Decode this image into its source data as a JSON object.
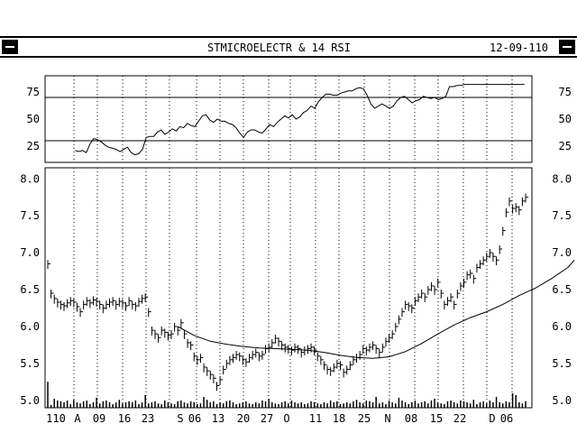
{
  "window": {
    "title": "STMICROELECTR & 14 RSI",
    "date": "12-09-110",
    "system_menu_icon": "system-menu-icon",
    "scroll_icon": "scroll-up-icon"
  },
  "chart_data": [
    {
      "type": "line",
      "name": "RSI panel",
      "title": "",
      "ylim": [
        10,
        90
      ],
      "yticks": [
        75,
        50,
        25
      ],
      "reference_lines": [
        70,
        30
      ],
      "grid": true,
      "x": [
        8,
        9,
        10,
        11,
        12,
        13,
        14,
        15,
        16,
        17,
        18,
        19,
        20,
        21,
        22,
        23,
        24,
        25,
        26,
        27,
        28,
        29,
        30,
        31,
        32,
        33,
        34,
        35,
        36,
        37,
        38,
        39,
        40,
        41,
        42,
        43,
        44,
        45,
        46,
        47,
        48,
        49,
        50,
        51,
        52,
        53,
        54,
        55,
        56,
        57,
        58,
        59,
        60,
        61,
        62,
        63,
        64,
        65,
        66,
        67,
        68,
        69,
        70,
        71,
        72,
        73,
        74,
        75,
        76,
        77,
        78,
        79,
        80,
        81,
        82,
        83,
        84,
        85,
        86,
        87,
        88,
        89,
        90,
        91,
        92,
        93,
        94,
        95,
        96,
        97,
        98,
        99,
        100,
        101,
        102,
        103,
        104,
        105,
        106,
        107,
        108,
        109,
        110,
        111,
        112,
        113,
        114,
        115,
        116,
        117,
        118,
        119,
        120,
        121,
        122,
        123,
        124,
        125,
        126,
        127,
        128
      ],
      "values": [
        21,
        20,
        21,
        19,
        27,
        32,
        31,
        29,
        26,
        24,
        23,
        22,
        20,
        22,
        24,
        19,
        17,
        18,
        22,
        33,
        34,
        34,
        38,
        40,
        36,
        38,
        41,
        39,
        43,
        42,
        46,
        44,
        43,
        48,
        53,
        54,
        49,
        47,
        50,
        48,
        48,
        46,
        45,
        42,
        37,
        33,
        38,
        40,
        40,
        38,
        37,
        41,
        45,
        43,
        47,
        50,
        53,
        51,
        54,
        50,
        52,
        56,
        58,
        62,
        60,
        66,
        70,
        73,
        73,
        72,
        72,
        74,
        75,
        76,
        76,
        78,
        79,
        78,
        72,
        64,
        60,
        62,
        64,
        62,
        60,
        62,
        67,
        70,
        71,
        68,
        65,
        67,
        68,
        71,
        70,
        69,
        70,
        68,
        69,
        71,
        80,
        80,
        81,
        81,
        82,
        82,
        82,
        82,
        82,
        82,
        82,
        82,
        82,
        82,
        82,
        82,
        82,
        82,
        82,
        82,
        82
      ]
    },
    {
      "type": "bar",
      "name": "Price panel (HLC bars) with moving average and volume",
      "title": "",
      "ylim": [
        4.9,
        8.15
      ],
      "yticks": [
        8.0,
        7.5,
        7.0,
        6.5,
        6.0,
        5.5,
        5.0
      ],
      "grid": true,
      "x_tick_labels": [
        "110",
        "A",
        "09",
        "16",
        "23",
        "S",
        "06",
        "13",
        "20",
        "27",
        "O",
        "11",
        "18",
        "25",
        "N",
        "08",
        "15",
        "22",
        "D",
        "06"
      ],
      "close": [
        6.85,
        6.45,
        6.38,
        6.33,
        6.3,
        6.28,
        6.32,
        6.35,
        6.33,
        6.27,
        6.2,
        6.3,
        6.35,
        6.32,
        6.36,
        6.34,
        6.3,
        6.25,
        6.3,
        6.33,
        6.35,
        6.3,
        6.34,
        6.32,
        6.28,
        6.35,
        6.3,
        6.28,
        6.34,
        6.38,
        6.4,
        6.2,
        5.95,
        5.9,
        5.85,
        5.95,
        5.92,
        5.88,
        5.9,
        6.0,
        5.95,
        6.05,
        5.9,
        5.78,
        5.75,
        5.6,
        5.55,
        5.58,
        5.45,
        5.4,
        5.35,
        5.3,
        5.2,
        5.28,
        5.42,
        5.5,
        5.55,
        5.58,
        5.62,
        5.6,
        5.55,
        5.52,
        5.58,
        5.62,
        5.65,
        5.6,
        5.62,
        5.7,
        5.72,
        5.78,
        5.84,
        5.8,
        5.75,
        5.72,
        5.7,
        5.68,
        5.72,
        5.7,
        5.65,
        5.68,
        5.7,
        5.72,
        5.68,
        5.6,
        5.55,
        5.48,
        5.42,
        5.4,
        5.45,
        5.5,
        5.48,
        5.38,
        5.42,
        5.48,
        5.55,
        5.58,
        5.62,
        5.7,
        5.68,
        5.72,
        5.75,
        5.7,
        5.65,
        5.72,
        5.8,
        5.85,
        5.9,
        6.0,
        6.1,
        6.2,
        6.3,
        6.28,
        6.25,
        6.35,
        6.4,
        6.45,
        6.4,
        6.5,
        6.55,
        6.5,
        6.6,
        6.45,
        6.3,
        6.35,
        6.4,
        6.3,
        6.45,
        6.55,
        6.6,
        6.7,
        6.72,
        6.65,
        6.8,
        6.85,
        6.9,
        6.95,
        7.0,
        6.95,
        6.9,
        7.05,
        7.3,
        7.55,
        7.7,
        7.6,
        7.62,
        7.58,
        7.7,
        7.75
      ],
      "moving_average": [
        [
          40,
          6.0
        ],
        [
          45,
          5.88
        ],
        [
          50,
          5.8
        ],
        [
          55,
          5.76
        ],
        [
          60,
          5.73
        ],
        [
          65,
          5.71
        ],
        [
          70,
          5.7
        ],
        [
          75,
          5.69
        ],
        [
          80,
          5.68
        ],
        [
          85,
          5.65
        ],
        [
          90,
          5.61
        ],
        [
          95,
          5.58
        ],
        [
          100,
          5.57
        ],
        [
          105,
          5.59
        ],
        [
          110,
          5.66
        ],
        [
          115,
          5.77
        ],
        [
          120,
          5.9
        ],
        [
          125,
          6.02
        ],
        [
          130,
          6.12
        ],
        [
          135,
          6.2
        ],
        [
          140,
          6.3
        ],
        [
          145,
          6.42
        ],
        [
          150,
          6.52
        ],
        [
          155,
          6.65
        ],
        [
          160,
          6.8
        ],
        [
          162,
          6.9
        ]
      ],
      "volume_relative": [
        0.72,
        0.08,
        0.25,
        0.2,
        0.18,
        0.15,
        0.2,
        0.1,
        0.22,
        0.15,
        0.12,
        0.18,
        0.2,
        0.1,
        0.15,
        0.28,
        0.12,
        0.18,
        0.2,
        0.15,
        0.1,
        0.15,
        0.22,
        0.12,
        0.15,
        0.18,
        0.15,
        0.2,
        0.1,
        0.15,
        0.35,
        0.12,
        0.15,
        0.18,
        0.12,
        0.1,
        0.2,
        0.15,
        0.12,
        0.1,
        0.18,
        0.2,
        0.15,
        0.12,
        0.18,
        0.15,
        0.1,
        0.12,
        0.3,
        0.22,
        0.15,
        0.18,
        0.1,
        0.15,
        0.12,
        0.18,
        0.2,
        0.15,
        0.1,
        0.12,
        0.15,
        0.18,
        0.12,
        0.1,
        0.15,
        0.12,
        0.2,
        0.18,
        0.25,
        0.15,
        0.12,
        0.1,
        0.15,
        0.18,
        0.12,
        0.2,
        0.15,
        0.12,
        0.15,
        0.1,
        0.12,
        0.18,
        0.15,
        0.12,
        0.1,
        0.15,
        0.12,
        0.2,
        0.15,
        0.18,
        0.1,
        0.12,
        0.15,
        0.12,
        0.18,
        0.22,
        0.15,
        0.12,
        0.2,
        0.18,
        0.15,
        0.3,
        0.12,
        0.15,
        0.1,
        0.2,
        0.15,
        0.12,
        0.28,
        0.2,
        0.15,
        0.1,
        0.15,
        0.2,
        0.12,
        0.15,
        0.18,
        0.12,
        0.2,
        0.25,
        0.15,
        0.12,
        0.1,
        0.18,
        0.2,
        0.15,
        0.12,
        0.2,
        0.18,
        0.15,
        0.12,
        0.22,
        0.1,
        0.15,
        0.18,
        0.12,
        0.2,
        0.15,
        0.3,
        0.15,
        0.12,
        0.18,
        0.15,
        0.4,
        0.35,
        0.15,
        0.12,
        0.18,
        0.2,
        0.15
      ]
    }
  ]
}
